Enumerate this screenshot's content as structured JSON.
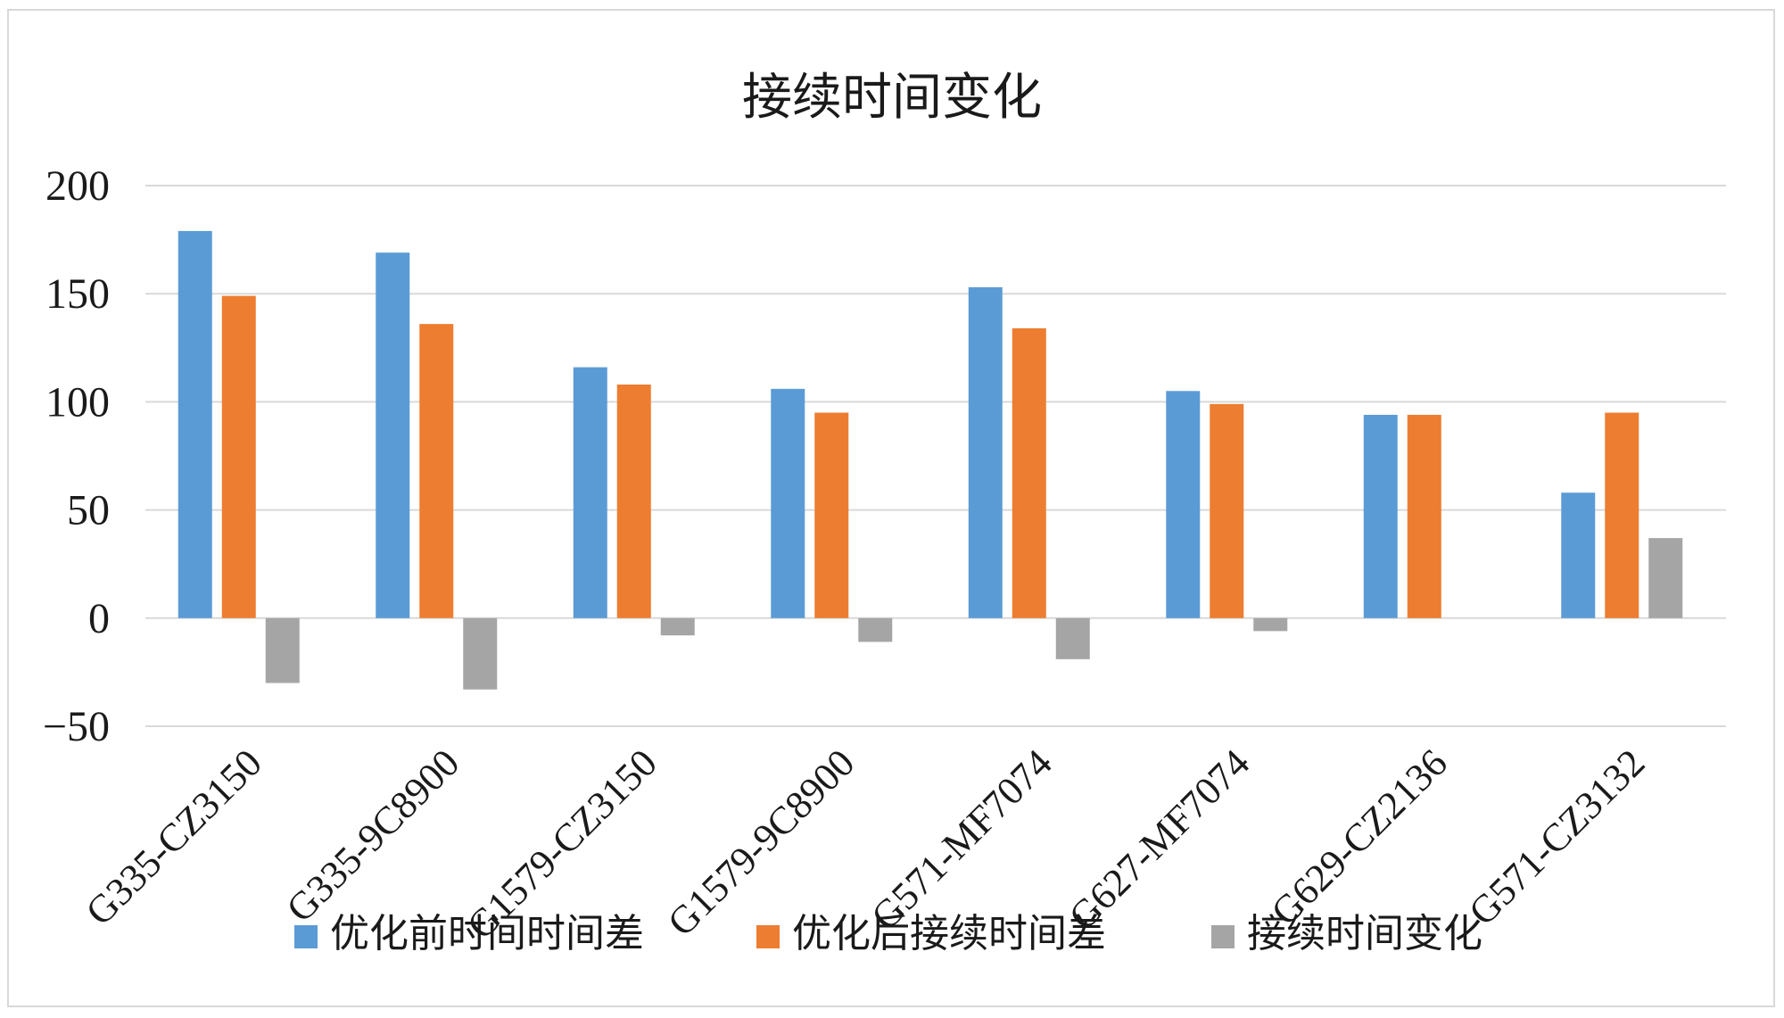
{
  "chart_data": {
    "type": "bar",
    "title": "接续时间变化",
    "categories": [
      "G335-CZ3150",
      "G335-9C8900",
      "G1579-CZ3150",
      "G1579-9C8900",
      "G571-MF7074",
      "G627-MF7074",
      "G629-CZ2136",
      "G571-CZ3132"
    ],
    "series": [
      {
        "name": "优化前时间时间差",
        "color": "#5b9bd5",
        "values": [
          179,
          169,
          116,
          106,
          153,
          105,
          94,
          58
        ]
      },
      {
        "name": "优化后接续时间差",
        "color": "#ed7d31",
        "values": [
          149,
          136,
          108,
          95,
          134,
          99,
          94,
          95
        ]
      },
      {
        "name": "接续时间变化",
        "color": "#a5a5a5",
        "values": [
          -30,
          -33,
          -8,
          -11,
          -19,
          -6,
          0,
          37
        ]
      }
    ],
    "ylim": [
      -50,
      200
    ],
    "yticks": [
      "200",
      "150",
      "100",
      "50",
      "0",
      "−50"
    ],
    "grid": true,
    "legend_position": "bottom",
    "gridline_color": "#d9d9d9"
  }
}
